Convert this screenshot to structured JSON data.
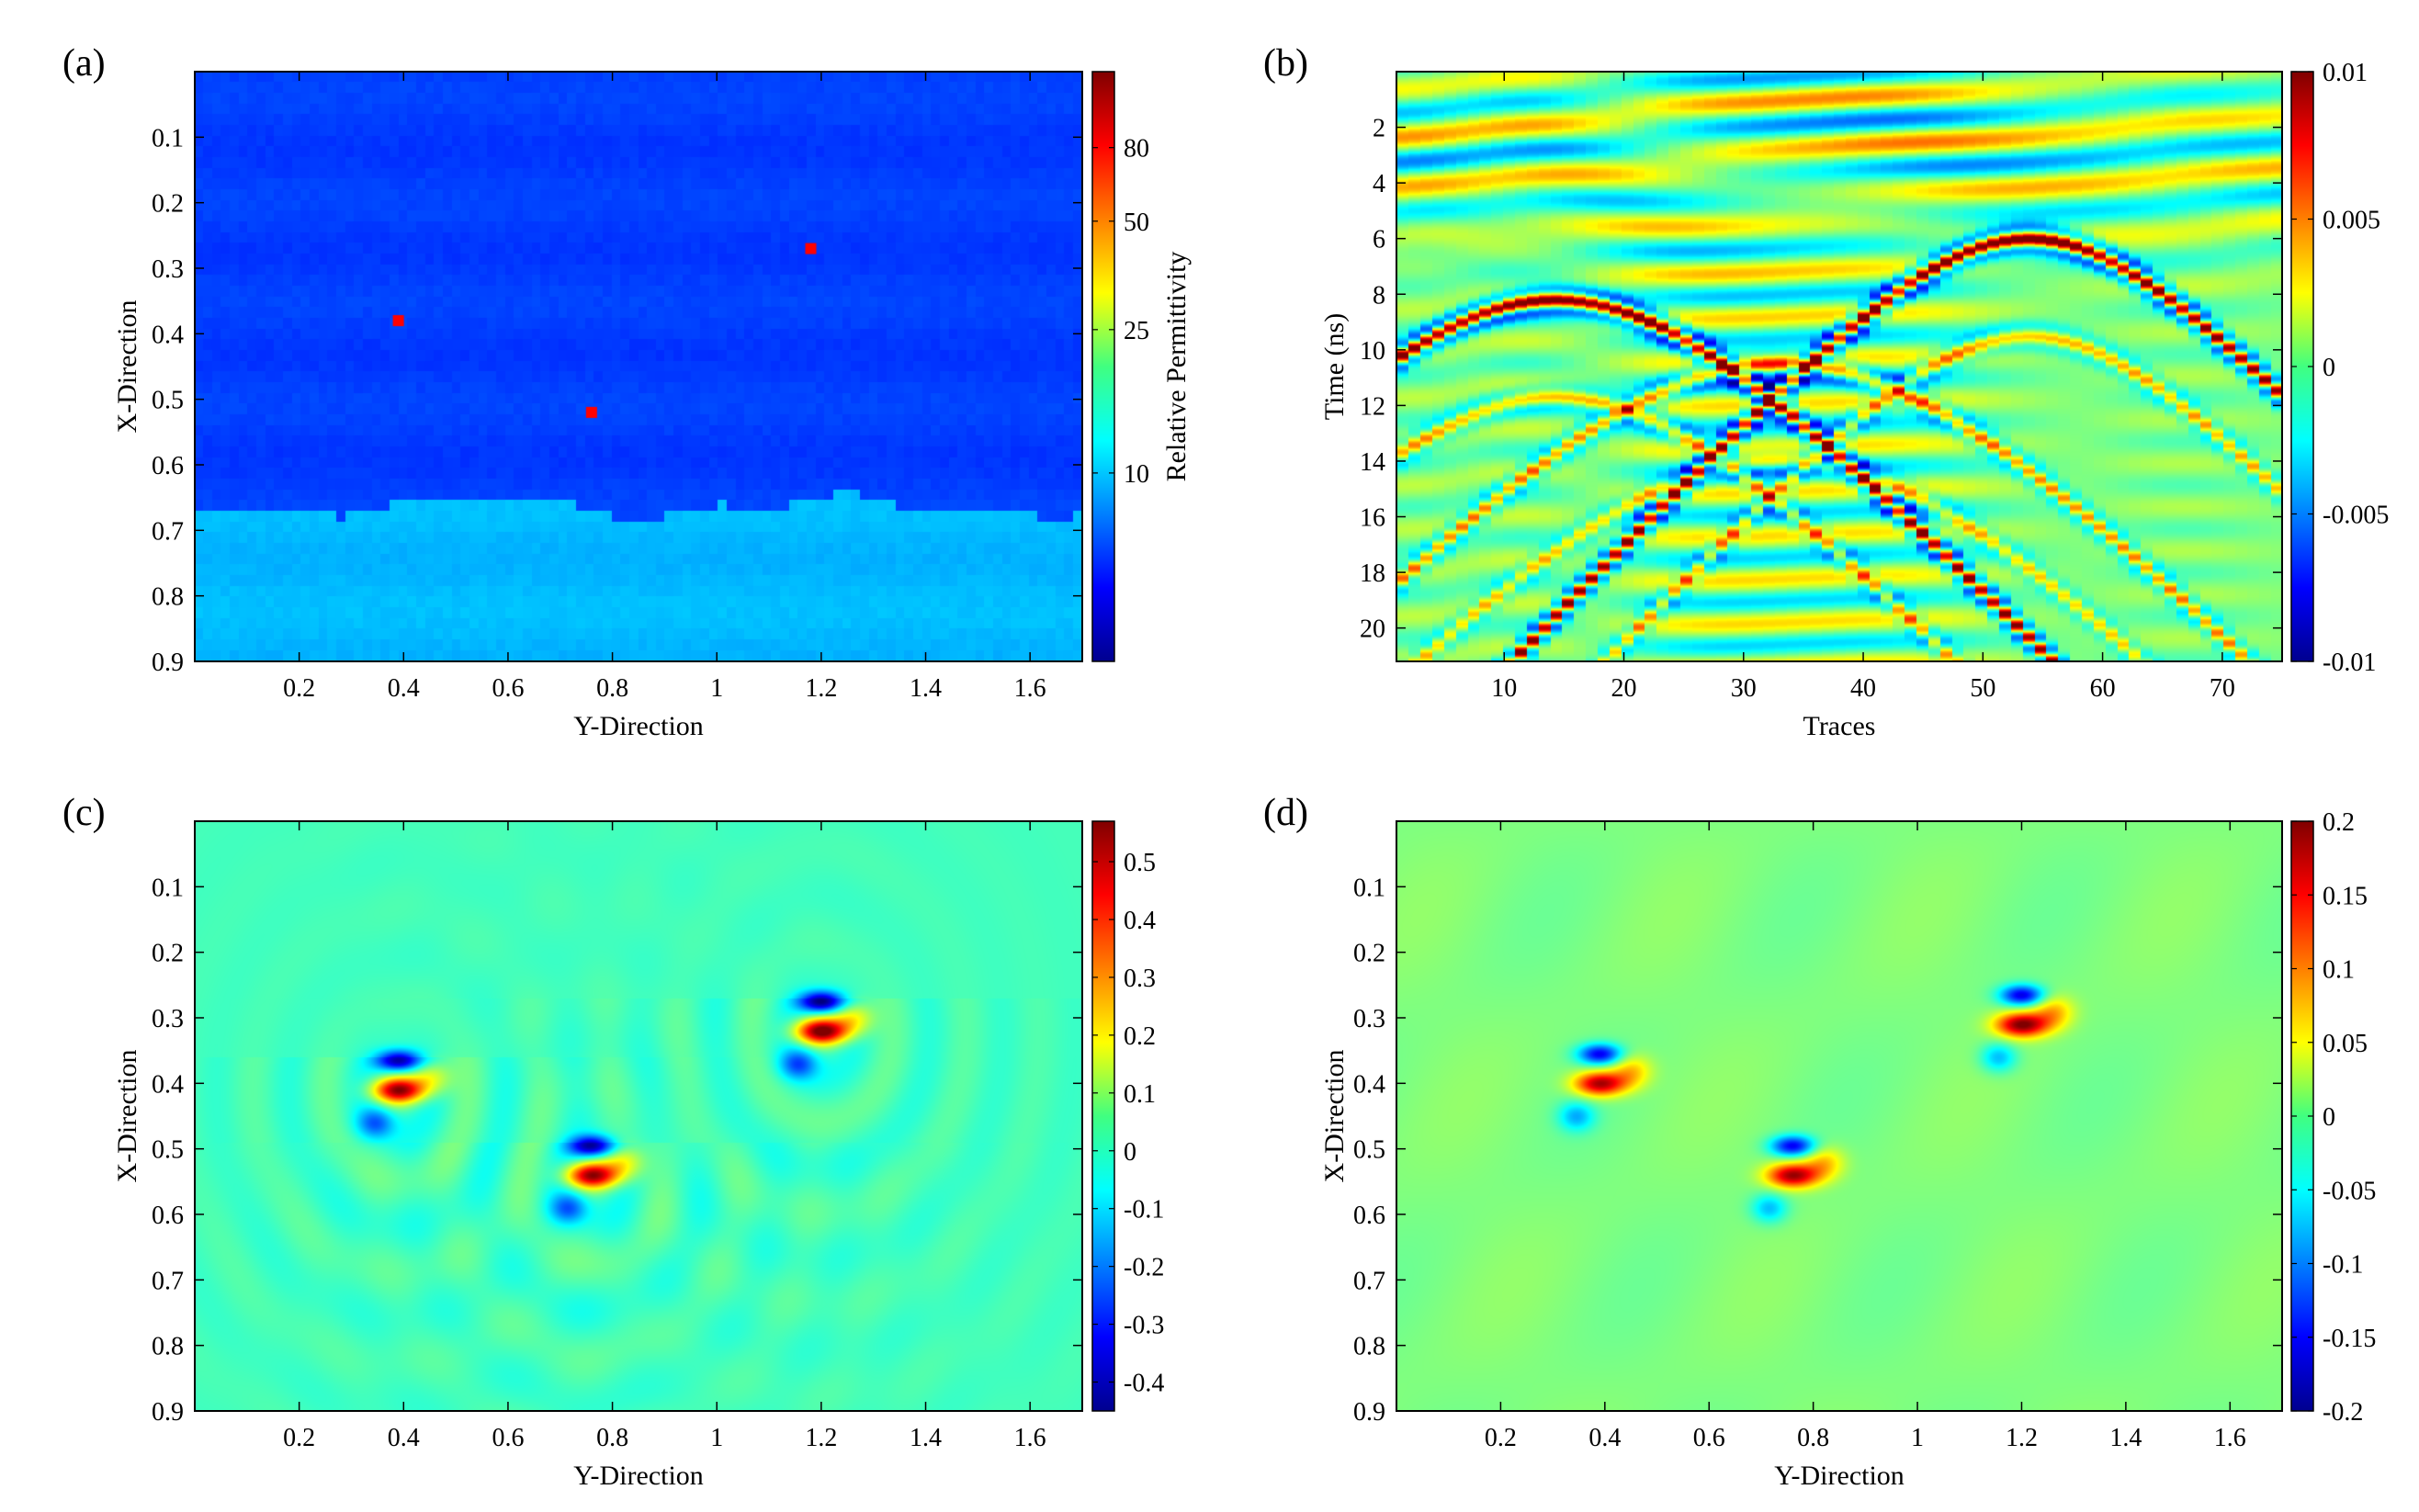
{
  "chart_data": [
    {
      "id": "a",
      "panel_label": "(a)",
      "type": "heatmap",
      "description_kind": "permittivity-model",
      "xlabel": "Y-Direction",
      "ylabel": "X-Direction",
      "xlim": [
        0,
        1.7
      ],
      "ylim": [
        0,
        0.9
      ],
      "xticks": [
        0.2,
        0.4,
        0.6,
        0.8,
        1,
        1.2,
        1.4,
        1.6
      ],
      "xtick_labels": [
        "0.2",
        "0.4",
        "0.6",
        "0.8",
        "1",
        "1.2",
        "1.4",
        "1.6"
      ],
      "yticks": [
        0.1,
        0.2,
        0.3,
        0.4,
        0.5,
        0.6,
        0.7,
        0.8,
        0.9
      ],
      "ytick_labels": [
        "0.1",
        "0.2",
        "0.3",
        "0.4",
        "0.5",
        "0.6",
        "0.7",
        "0.8",
        "0.9"
      ],
      "colorbar": {
        "label": "Relative Permittivity",
        "scale": "log",
        "range": [
          3,
          130
        ],
        "ticks": [
          10,
          25,
          50,
          80
        ],
        "tick_labels": [
          "10",
          "25",
          "50",
          "80"
        ]
      },
      "layers": [
        {
          "name": "upper-layer",
          "permittivity": 6
        },
        {
          "name": "lower-layer",
          "permittivity": 9.5,
          "interface_depth_mean": 0.665
        }
      ],
      "targets": [
        {
          "y": 0.39,
          "x": 0.38,
          "permittivity": 81
        },
        {
          "y": 0.76,
          "x": 0.52,
          "permittivity": 81
        },
        {
          "y": 1.18,
          "x": 0.27,
          "permittivity": 81
        }
      ]
    },
    {
      "id": "b",
      "panel_label": "(b)",
      "type": "heatmap",
      "description_kind": "radargram",
      "xlabel": "Traces",
      "ylabel": "Time (ns)",
      "xlim": [
        1,
        75
      ],
      "ylim": [
        0,
        21.2
      ],
      "xticks": [
        10,
        20,
        30,
        40,
        50,
        60,
        70
      ],
      "xtick_labels": [
        "10",
        "20",
        "30",
        "40",
        "50",
        "60",
        "70"
      ],
      "yticks": [
        2,
        4,
        6,
        8,
        10,
        12,
        14,
        16,
        18,
        20
      ],
      "ytick_labels": [
        "2",
        "4",
        "6",
        "8",
        "10",
        "12",
        "14",
        "16",
        "18",
        "20"
      ],
      "colorbar": {
        "label": "",
        "range": [
          -0.01,
          0.01
        ],
        "ticks": [
          -0.01,
          -0.005,
          0,
          0.005,
          0.01
        ],
        "tick_labels": [
          "-0.01",
          "-0.005",
          "0",
          "0.005",
          "0.01"
        ]
      },
      "hyperbolas": [
        {
          "apex_trace": 14,
          "apex_time_ns": 8.2,
          "amplitude": 0.01
        },
        {
          "apex_trace": 54,
          "apex_time_ns": 6.0,
          "amplitude": 0.01
        },
        {
          "apex_trace": 33,
          "apex_time_ns": 10.5,
          "amplitude": 0.008
        }
      ]
    },
    {
      "id": "c",
      "panel_label": "(c)",
      "type": "heatmap",
      "description_kind": "reconstruction",
      "xlabel": "Y-Direction",
      "ylabel": "X-Direction",
      "xlim": [
        0,
        1.7
      ],
      "ylim": [
        0,
        0.9
      ],
      "xticks": [
        0.2,
        0.4,
        0.6,
        0.8,
        1,
        1.2,
        1.4,
        1.6
      ],
      "xtick_labels": [
        "0.2",
        "0.4",
        "0.6",
        "0.8",
        "1",
        "1.2",
        "1.4",
        "1.6"
      ],
      "yticks": [
        0.1,
        0.2,
        0.3,
        0.4,
        0.5,
        0.6,
        0.7,
        0.8,
        0.9
      ],
      "ytick_labels": [
        "0.1",
        "0.2",
        "0.3",
        "0.4",
        "0.5",
        "0.6",
        "0.7",
        "0.8",
        "0.9"
      ],
      "colorbar": {
        "label": "",
        "range": [
          -0.45,
          0.57
        ],
        "ticks": [
          -0.4,
          -0.3,
          -0.2,
          -0.1,
          0,
          0.1,
          0.2,
          0.3,
          0.4,
          0.5
        ],
        "tick_labels": [
          "-0.4",
          "-0.3",
          "-0.2",
          "-0.1",
          "0",
          "0.1",
          "0.2",
          "0.3",
          "0.4",
          "0.5"
        ]
      },
      "blobs": [
        {
          "y": 0.39,
          "x": 0.41,
          "peak": 0.5
        },
        {
          "y": 0.76,
          "x": 0.54,
          "peak": 0.5
        },
        {
          "y": 1.2,
          "x": 0.32,
          "peak": 0.55
        }
      ]
    },
    {
      "id": "d",
      "panel_label": "(d)",
      "type": "heatmap",
      "description_kind": "reconstruction",
      "xlabel": "Y-Direction",
      "ylabel": "X-Direction",
      "xlim": [
        0,
        1.7
      ],
      "ylim": [
        0,
        0.9
      ],
      "xticks": [
        0.2,
        0.4,
        0.6,
        0.8,
        1,
        1.2,
        1.4,
        1.6
      ],
      "xtick_labels": [
        "0.2",
        "0.4",
        "0.6",
        "0.8",
        "1",
        "1.2",
        "1.4",
        "1.6"
      ],
      "yticks": [
        0.1,
        0.2,
        0.3,
        0.4,
        0.5,
        0.6,
        0.7,
        0.8,
        0.9
      ],
      "ytick_labels": [
        "0.1",
        "0.2",
        "0.3",
        "0.4",
        "0.5",
        "0.6",
        "0.7",
        "0.8",
        "0.9"
      ],
      "colorbar": {
        "label": "",
        "range": [
          -0.2,
          0.2
        ],
        "ticks": [
          -0.2,
          -0.15,
          -0.1,
          -0.05,
          0,
          0.05,
          0.1,
          0.15,
          0.2
        ],
        "tick_labels": [
          "-0.2",
          "-0.15",
          "-0.1",
          "-0.05",
          "0",
          "0.05",
          "0.1",
          "0.15",
          "0.2"
        ]
      },
      "blobs": [
        {
          "y": 0.39,
          "x": 0.4,
          "peak": 0.19
        },
        {
          "y": 0.76,
          "x": 0.54,
          "peak": 0.19
        },
        {
          "y": 1.2,
          "x": 0.31,
          "peak": 0.2
        }
      ]
    }
  ]
}
